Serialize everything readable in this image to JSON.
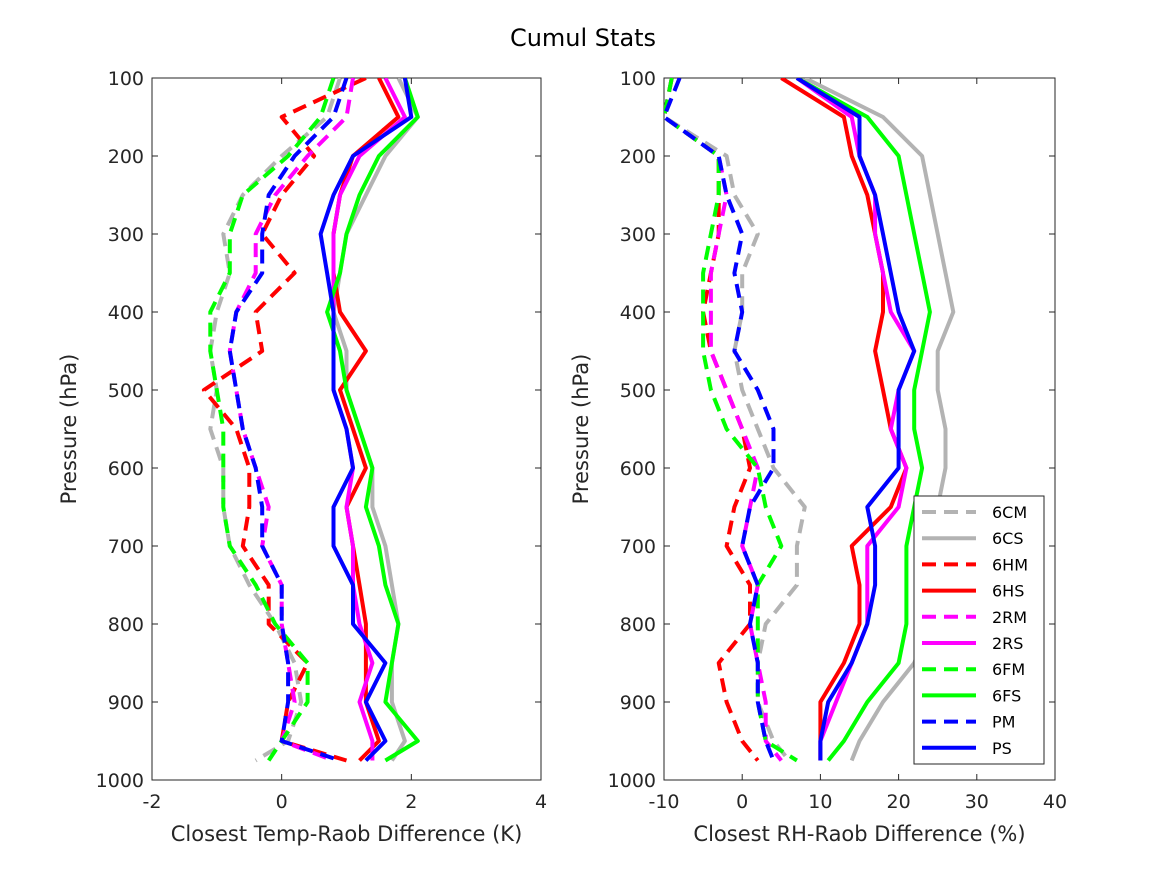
{
  "title": "Cumul Stats",
  "colors": {
    "6C": "#b3b3b3",
    "6H": "#ff0000",
    "2R": "#ff00ff",
    "6F": "#00ff00",
    "P": "#0000ff"
  },
  "legend": {
    "position": "bottom-right of right panel",
    "entries": [
      {
        "label": "6CM",
        "color": "#b3b3b3",
        "style": "dashed"
      },
      {
        "label": "6CS",
        "color": "#b3b3b3",
        "style": "solid"
      },
      {
        "label": "6HM",
        "color": "#ff0000",
        "style": "dashed"
      },
      {
        "label": "6HS",
        "color": "#ff0000",
        "style": "solid"
      },
      {
        "label": "2RM",
        "color": "#ff00ff",
        "style": "dashed"
      },
      {
        "label": "2RS",
        "color": "#ff00ff",
        "style": "solid"
      },
      {
        "label": "6FM",
        "color": "#00ff00",
        "style": "dashed"
      },
      {
        "label": "6FS",
        "color": "#00ff00",
        "style": "solid"
      },
      {
        "label": "PM",
        "color": "#0000ff",
        "style": "dashed"
      },
      {
        "label": "PS",
        "color": "#0000ff",
        "style": "solid"
      }
    ]
  },
  "chart_data": [
    {
      "type": "line",
      "xlabel": "Closest Temp-Raob Difference (K)",
      "ylabel": "Pressure (hPa)",
      "xlim": [
        -2,
        4
      ],
      "ylim": [
        100,
        1000
      ],
      "y_reversed": true,
      "xticks": [
        "-2",
        "0",
        "2",
        "4"
      ],
      "yticks": [
        "100",
        "200",
        "300",
        "400",
        "500",
        "600",
        "700",
        "800",
        "900",
        "1000"
      ],
      "grid": false,
      "pressure": [
        100,
        150,
        200,
        250,
        300,
        350,
        400,
        450,
        500,
        550,
        600,
        650,
        700,
        750,
        800,
        850,
        900,
        950,
        975
      ],
      "series": [
        {
          "name": "6CM",
          "values": [
            0.9,
            0.7,
            0.0,
            -0.6,
            -0.9,
            -0.8,
            -1.0,
            -1.1,
            -1.0,
            -1.1,
            -0.9,
            -0.9,
            -0.8,
            -0.5,
            -0.1,
            0.2,
            0.3,
            0.1,
            -0.4
          ]
        },
        {
          "name": "6CS",
          "values": [
            1.8,
            2.1,
            1.6,
            1.3,
            1.0,
            0.9,
            0.8,
            1.0,
            1.0,
            1.2,
            1.4,
            1.4,
            1.6,
            1.7,
            1.8,
            1.7,
            1.7,
            1.9,
            1.7
          ]
        },
        {
          "name": "6HM",
          "values": [
            1.3,
            0.0,
            0.5,
            0.0,
            -0.3,
            0.2,
            -0.4,
            -0.3,
            -1.2,
            -0.7,
            -0.5,
            -0.5,
            -0.6,
            -0.2,
            -0.2,
            0.4,
            0.1,
            0.0,
            1.0
          ]
        },
        {
          "name": "6HS",
          "values": [
            1.5,
            1.8,
            1.1,
            0.9,
            0.8,
            0.8,
            0.9,
            1.3,
            0.9,
            1.1,
            1.3,
            1.0,
            1.1,
            1.2,
            1.3,
            1.3,
            1.3,
            1.5,
            1.2
          ]
        },
        {
          "name": "2RM",
          "values": [
            1.1,
            1.0,
            0.4,
            -0.1,
            -0.4,
            -0.4,
            -0.7,
            -0.8,
            -0.7,
            -0.6,
            -0.4,
            -0.2,
            -0.3,
            0.0,
            0.0,
            0.1,
            0.2,
            0.0,
            0.8
          ]
        },
        {
          "name": "2RS",
          "values": [
            1.6,
            1.9,
            1.2,
            0.9,
            0.8,
            0.8,
            0.8,
            0.8,
            0.8,
            1.0,
            1.1,
            1.0,
            1.1,
            1.1,
            1.2,
            1.4,
            1.2,
            1.4,
            1.4
          ]
        },
        {
          "name": "6FM",
          "values": [
            0.8,
            0.6,
            0.1,
            -0.6,
            -0.8,
            -0.8,
            -1.1,
            -1.1,
            -1.0,
            -0.9,
            -0.9,
            -0.9,
            -0.8,
            -0.4,
            -0.1,
            0.4,
            0.4,
            0.0,
            -0.2
          ]
        },
        {
          "name": "6FS",
          "values": [
            1.9,
            2.1,
            1.5,
            1.2,
            1.0,
            0.9,
            0.7,
            0.9,
            1.0,
            1.2,
            1.4,
            1.3,
            1.5,
            1.6,
            1.8,
            1.7,
            1.6,
            2.1,
            1.6
          ]
        },
        {
          "name": "PM",
          "values": [
            1.0,
            0.8,
            0.2,
            -0.2,
            -0.3,
            -0.3,
            -0.7,
            -0.8,
            -0.7,
            -0.6,
            -0.4,
            -0.3,
            -0.3,
            0.0,
            0.0,
            0.1,
            0.1,
            0.0,
            0.9
          ]
        },
        {
          "name": "PS",
          "values": [
            1.9,
            2.0,
            1.1,
            0.8,
            0.6,
            0.7,
            0.8,
            0.8,
            0.8,
            1.0,
            1.1,
            0.8,
            0.8,
            1.1,
            1.1,
            1.6,
            1.3,
            1.6,
            1.3
          ]
        }
      ]
    },
    {
      "type": "line",
      "xlabel": "Closest RH-Raob Difference (%)",
      "ylabel": "Pressure (hPa)",
      "xlim": [
        -10,
        40
      ],
      "ylim": [
        100,
        1000
      ],
      "y_reversed": true,
      "xticks": [
        "-10",
        "0",
        "10",
        "20",
        "30",
        "40"
      ],
      "yticks": [
        "100",
        "200",
        "300",
        "400",
        "500",
        "600",
        "700",
        "800",
        "900",
        "1000"
      ],
      "grid": false,
      "pressure": [
        100,
        150,
        200,
        250,
        300,
        350,
        400,
        450,
        500,
        550,
        600,
        650,
        700,
        750,
        800,
        850,
        900,
        950,
        975
      ],
      "series": [
        {
          "name": "6CM",
          "values": [
            -9,
            -10,
            -2,
            -1,
            2,
            0,
            0,
            -1,
            0,
            2,
            4,
            8,
            7,
            7,
            3,
            2,
            2,
            4,
            6
          ]
        },
        {
          "name": "6CS",
          "values": [
            8,
            18,
            23,
            24,
            25,
            26,
            27,
            25,
            25,
            26,
            26,
            25,
            25,
            25,
            24,
            22,
            18,
            15,
            14
          ]
        },
        {
          "name": "6HM",
          "values": [
            -9,
            -10,
            -3,
            -3,
            -3,
            -4,
            -5,
            -4,
            -2,
            0,
            1,
            -1,
            -2,
            1,
            1,
            -3,
            -2,
            0,
            2
          ]
        },
        {
          "name": "6HS",
          "values": [
            5,
            13,
            14,
            16,
            17,
            18,
            18,
            17,
            18,
            19,
            21,
            19,
            14,
            15,
            15,
            13,
            10,
            10,
            10
          ]
        },
        {
          "name": "2RM",
          "values": [
            -9,
            -10,
            -3,
            -2,
            -3,
            -4,
            -4,
            -4,
            -2,
            0,
            2,
            1,
            0,
            2,
            1,
            2,
            3,
            3,
            5
          ]
        },
        {
          "name": "2RS",
          "values": [
            7,
            14,
            15,
            17,
            17,
            18,
            19,
            22,
            20,
            19,
            21,
            20,
            16,
            16,
            16,
            14,
            12,
            10,
            10
          ]
        },
        {
          "name": "6FM",
          "values": [
            -9,
            -10,
            -3,
            -3,
            -4,
            -5,
            -5,
            -5,
            -4,
            -2,
            2,
            3,
            5,
            2,
            2,
            2,
            2,
            3,
            7
          ]
        },
        {
          "name": "6FS",
          "values": [
            7,
            16,
            20,
            21,
            22,
            23,
            24,
            23,
            22,
            22,
            23,
            22,
            21,
            21,
            21,
            20,
            16,
            13,
            11
          ]
        },
        {
          "name": "PM",
          "values": [
            -8,
            -10,
            -3,
            -2,
            0,
            -1,
            0,
            -1,
            2,
            4,
            4,
            1,
            0,
            2,
            1,
            2,
            2,
            3,
            4
          ]
        },
        {
          "name": "PS",
          "values": [
            7,
            15,
            15,
            17,
            18,
            19,
            20,
            22,
            20,
            20,
            20,
            16,
            17,
            17,
            16,
            14,
            11,
            10,
            10
          ]
        }
      ]
    }
  ]
}
